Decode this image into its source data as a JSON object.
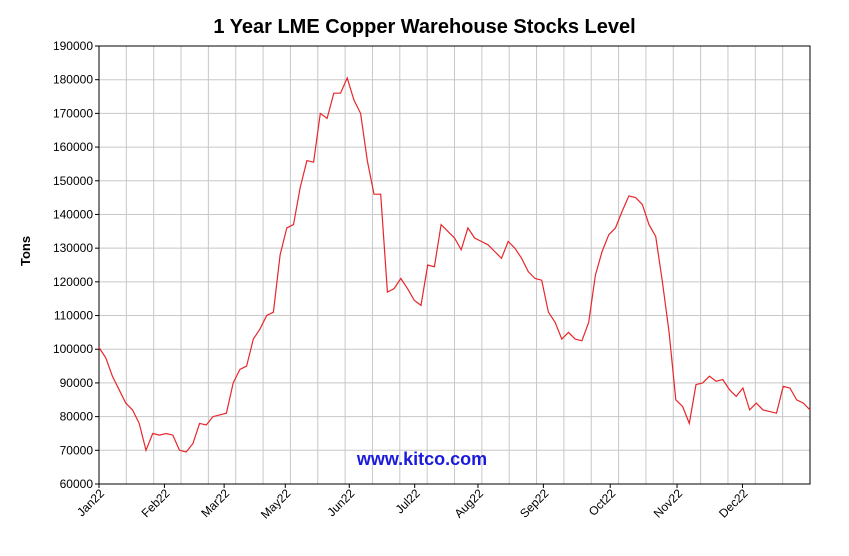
{
  "chart_data": {
    "type": "line",
    "title": "1 Year LME Copper Warehouse Stocks Level",
    "xlabel": "",
    "ylabel": "Tons",
    "watermark": "www.kitco.com",
    "ylim": [
      60000,
      190000
    ],
    "yticks": [
      60000,
      70000,
      80000,
      90000,
      100000,
      110000,
      120000,
      130000,
      140000,
      150000,
      160000,
      170000,
      180000,
      190000
    ],
    "xtick_labels": [
      "Jan22",
      "Feb22",
      "Mar22",
      "May22",
      "Jun22",
      "Jul22",
      "Aug22",
      "Sep22",
      "Oct22",
      "Nov22",
      "Dec22"
    ],
    "grid": true,
    "line_color": "#e8262a",
    "watermark_color": "#1a1adc",
    "series": [
      {
        "values": [
          100500,
          97500,
          92000,
          88000,
          84000,
          82000,
          78000,
          70000,
          75000,
          74500,
          75000,
          74500,
          70000,
          69500,
          72000,
          78000,
          77500,
          80000,
          80500,
          81000,
          90000,
          94000,
          95000,
          103000,
          106000,
          110000,
          111000,
          128000,
          136000,
          137000,
          148000,
          156000,
          155500,
          170000,
          168500,
          176000,
          176000,
          180500,
          174000,
          170000,
          156000,
          146000,
          146000,
          117000,
          118000,
          121000,
          118000,
          114500,
          113000,
          125000,
          124500,
          137000,
          135000,
          133000,
          129500,
          136000,
          133000,
          132000,
          131000,
          129000,
          127000,
          132000,
          130000,
          127000,
          123000,
          121000,
          120500,
          111000,
          108000,
          103000,
          105000,
          103000,
          102500,
          108000,
          122000,
          129000,
          134000,
          136000,
          141000,
          145500,
          145000,
          143000,
          137000,
          133500,
          120000,
          105000,
          85000,
          83000,
          78000,
          89500,
          90000,
          92000,
          90500,
          91000,
          88000,
          86000,
          88500,
          82000,
          84000,
          82000,
          81500,
          81000,
          89000,
          88500,
          85000,
          84000,
          82000
        ]
      }
    ]
  }
}
